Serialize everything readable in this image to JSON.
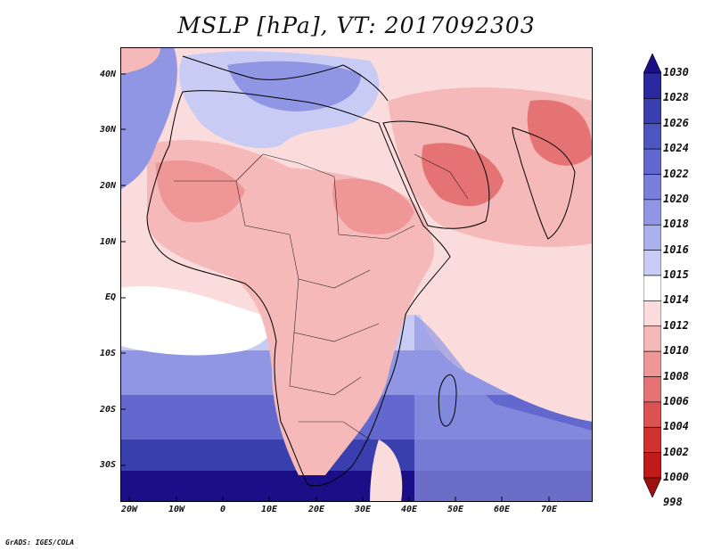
{
  "title": "MSLP [hPa], VT: 2017092303",
  "credit": "GrADS: IGES/COLA",
  "lat_labels": [
    "40N",
    "30N",
    "20N",
    "10N",
    "EQ",
    "10S",
    "20S",
    "30S"
  ],
  "lon_labels": [
    "20W",
    "10W",
    "0",
    "10E",
    "20E",
    "30E",
    "40E",
    "50E",
    "60E",
    "70E"
  ],
  "colorbar": {
    "levels": [
      "1030",
      "1028",
      "1026",
      "1024",
      "1022",
      "1020",
      "1018",
      "1016",
      "1015",
      "1014",
      "1012",
      "1010",
      "1008",
      "1006",
      "1004",
      "1002",
      "1000",
      "998"
    ],
    "colors": [
      "#1a0f86",
      "#2a2a9e",
      "#3a3fae",
      "#4d55bf",
      "#6268cd",
      "#787ed9",
      "#9096e3",
      "#aab0ec",
      "#c8ccf4",
      "#ffffff",
      "#fbdcdc",
      "#f5b9b9",
      "#ef9696",
      "#e67373",
      "#dc5151",
      "#d03131",
      "#c01a1a",
      "#9e0f0f"
    ]
  },
  "field_colors": {
    "very_high": "#1a0f86",
    "high": "#4d55bf",
    "mid_high": "#9096e3",
    "low_high": "#c8ccf4",
    "neutral": "#ffffff",
    "slight_low": "#fbdcdc",
    "low": "#f5b9b9",
    "lower": "#ef9696",
    "lowest": "#e67373"
  }
}
